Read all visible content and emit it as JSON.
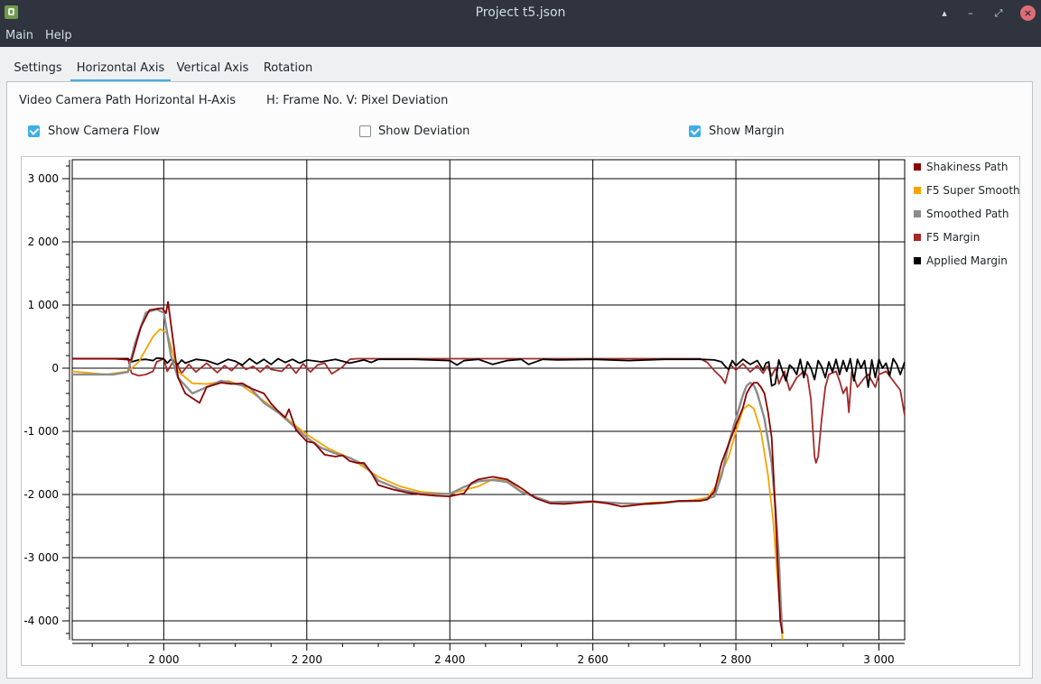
{
  "window": {
    "title": "Project t5.json",
    "controls": [
      "▴",
      "–",
      "⤢",
      "×"
    ]
  },
  "menu": {
    "items": [
      "Main",
      "Help"
    ]
  },
  "tabs": [
    {
      "label": "Settings",
      "active": false
    },
    {
      "label": "Horizontal Axis",
      "active": true
    },
    {
      "label": "Vertical Axis",
      "active": false
    },
    {
      "label": "Rotation",
      "active": false
    }
  ],
  "info": {
    "description": "Video Camera Path Horizontal H-Axis",
    "axes": "H: Frame No. V: Pixel Deviation"
  },
  "checkboxes": [
    {
      "label": "Show Camera Flow",
      "checked": true
    },
    {
      "label": "Show Deviation",
      "checked": false
    },
    {
      "label": "Show Margin",
      "checked": true
    }
  ],
  "colors": {
    "accent": "#3daee9",
    "titlebar": "#2f343f"
  },
  "chart_data": {
    "type": "line",
    "xlim": [
      1872,
      3036
    ],
    "ylim": [
      -4300,
      3300
    ],
    "xticks": [
      2000,
      2200,
      2400,
      2600,
      2800,
      3000
    ],
    "yticks": [
      3000,
      2000,
      1000,
      0,
      -1000,
      -2000,
      -3000,
      -4000
    ],
    "xtick_labels": [
      "2 000",
      "2 200",
      "2 400",
      "2 600",
      "2 800",
      "3 000"
    ],
    "ytick_labels": [
      "3 000",
      "2 000",
      "1 000",
      "0",
      "-1 000",
      "-2 000",
      "-3 000",
      "-4 000"
    ],
    "grid": true,
    "legend_position": "right",
    "series": [
      {
        "name": "Shakiness Path",
        "color": "#8b0000",
        "x": [
          1872,
          1930,
          1955,
          1968,
          1980,
          1990,
          1998,
          2003,
          2006,
          2010,
          2020,
          2030,
          2050,
          2060,
          2080,
          2095,
          2110,
          2120,
          2140,
          2150,
          2160,
          2170,
          2175,
          2185,
          2200,
          2210,
          2225,
          2240,
          2250,
          2260,
          2270,
          2280,
          2290,
          2300,
          2320,
          2340,
          2360,
          2380,
          2400,
          2420,
          2430,
          2440,
          2460,
          2480,
          2500,
          2520,
          2540,
          2560,
          2600,
          2620,
          2640,
          2650,
          2680,
          2700,
          2720,
          2750,
          2760,
          2770,
          2780,
          2790,
          2800,
          2810,
          2815,
          2820,
          2825,
          2830,
          2835,
          2840,
          2845,
          2850,
          2855,
          2860,
          2862,
          2865
        ],
        "y": [
          150,
          150,
          130,
          650,
          920,
          940,
          950,
          870,
          1050,
          700,
          -150,
          -400,
          -550,
          -300,
          -230,
          -250,
          -240,
          -310,
          -400,
          -560,
          -680,
          -780,
          -650,
          -980,
          -1160,
          -1180,
          -1370,
          -1400,
          -1380,
          -1470,
          -1500,
          -1500,
          -1650,
          -1850,
          -1920,
          -1970,
          -2000,
          -2020,
          -2030,
          -1980,
          -1820,
          -1760,
          -1720,
          -1760,
          -1900,
          -2060,
          -2140,
          -2150,
          -2110,
          -2140,
          -2190,
          -2180,
          -2140,
          -2130,
          -2100,
          -2100,
          -2080,
          -1950,
          -1500,
          -1200,
          -900,
          -620,
          -400,
          -300,
          -230,
          -230,
          -300,
          -400,
          -700,
          -1100,
          -2200,
          -3500,
          -4000,
          -4200
        ]
      },
      {
        "name": "F5 Super Smooth",
        "color": "#f5a400",
        "x": [
          1872,
          1920,
          1950,
          1965,
          1985,
          1995,
          2005,
          2020,
          2040,
          2060,
          2090,
          2110,
          2140,
          2170,
          2200,
          2230,
          2260,
          2300,
          2330,
          2360,
          2400,
          2440,
          2460,
          2480,
          2500,
          2540,
          2600,
          2650,
          2700,
          2740,
          2760,
          2770,
          2790,
          2800,
          2810,
          2818,
          2825,
          2835,
          2845,
          2852,
          2858,
          2865
        ],
        "y": [
          -50,
          -100,
          -50,
          100,
          500,
          620,
          550,
          -50,
          -240,
          -250,
          -200,
          -280,
          -520,
          -780,
          -1050,
          -1270,
          -1420,
          -1720,
          -1870,
          -1960,
          -1990,
          -1870,
          -1760,
          -1770,
          -1950,
          -2130,
          -2120,
          -2150,
          -2120,
          -2090,
          -2050,
          -1900,
          -1400,
          -1000,
          -650,
          -580,
          -640,
          -1000,
          -1700,
          -2400,
          -3300,
          -4300
        ]
      },
      {
        "name": "Smoothed Path",
        "color": "#8c8c8c",
        "x": [
          1872,
          1930,
          1950,
          1960,
          1975,
          1990,
          2000,
          2010,
          2020,
          2040,
          2060,
          2080,
          2100,
          2120,
          2140,
          2160,
          2180,
          2200,
          2220,
          2240,
          2260,
          2280,
          2300,
          2330,
          2360,
          2400,
          2420,
          2440,
          2460,
          2480,
          2500,
          2540,
          2600,
          2640,
          2680,
          2720,
          2750,
          2770,
          2780,
          2790,
          2800,
          2810,
          2815,
          2820,
          2825,
          2830,
          2840,
          2850,
          2856,
          2860,
          2863,
          2865
        ],
        "y": [
          -100,
          -100,
          -60,
          400,
          880,
          930,
          880,
          200,
          -150,
          -400,
          -300,
          -200,
          -250,
          -300,
          -550,
          -700,
          -900,
          -1100,
          -1260,
          -1350,
          -1420,
          -1530,
          -1780,
          -1920,
          -1990,
          -1990,
          -1880,
          -1790,
          -1770,
          -1800,
          -1960,
          -2120,
          -2110,
          -2140,
          -2150,
          -2110,
          -2100,
          -2030,
          -1700,
          -1200,
          -800,
          -420,
          -280,
          -230,
          -270,
          -400,
          -800,
          -1500,
          -2300,
          -3000,
          -3800,
          -4200
        ]
      },
      {
        "name": "F5 Margin",
        "color": "#a52a2a",
        "x": [
          1872,
          1950,
          1955,
          1965,
          1975,
          1985,
          1990,
          2000,
          2005,
          2015,
          2025,
          2035,
          2045,
          2060,
          2075,
          2085,
          2095,
          2105,
          2115,
          2125,
          2135,
          2145,
          2150,
          2165,
          2175,
          2185,
          2195,
          2205,
          2215,
          2225,
          2235,
          2250,
          2260,
          2270,
          2280,
          2290,
          2600,
          2750,
          2760,
          2770,
          2780,
          2785,
          2792,
          2800,
          2810,
          2820,
          2830,
          2838,
          2844,
          2850,
          2856,
          2860,
          2868,
          2875,
          2885,
          2895,
          2900,
          2905,
          2910,
          2912,
          2915,
          2920,
          2925,
          2930,
          2940,
          2945,
          2950,
          2955,
          2958,
          2962,
          2970,
          2980,
          2985,
          2995,
          3000,
          3010,
          3020,
          3030,
          3036
        ],
        "y": [
          150,
          150,
          -80,
          -120,
          -100,
          -50,
          100,
          150,
          -50,
          140,
          -80,
          60,
          -60,
          80,
          -70,
          40,
          -40,
          80,
          -20,
          30,
          -60,
          40,
          -20,
          -50,
          60,
          -80,
          70,
          -60,
          50,
          80,
          -90,
          20,
          140,
          150,
          150,
          150,
          150,
          150,
          90,
          -40,
          -150,
          -240,
          60,
          -30,
          70,
          -60,
          40,
          -80,
          30,
          -120,
          10,
          -250,
          -50,
          -350,
          -150,
          -50,
          -120,
          -500,
          -1400,
          -1500,
          -1400,
          -800,
          -300,
          -100,
          -50,
          -200,
          -400,
          -300,
          -700,
          -50,
          -300,
          -150,
          -100,
          -300,
          -100,
          -50,
          -200,
          -350,
          -750
        ]
      },
      {
        "name": "Applied Margin",
        "color": "#000000",
        "x": [
          1872,
          1950,
          1955,
          1965,
          1975,
          1985,
          1990,
          2000,
          2005,
          2010,
          2020,
          2025,
          2030,
          2045,
          2060,
          2075,
          2090,
          2100,
          2110,
          2120,
          2130,
          2140,
          2150,
          2160,
          2170,
          2180,
          2190,
          2200,
          2220,
          2240,
          2260,
          2280,
          2290,
          2300,
          2350,
          2400,
          2410,
          2420,
          2440,
          2460,
          2480,
          2500,
          2510,
          2530,
          2550,
          2600,
          2650,
          2700,
          2750,
          2770,
          2780,
          2785,
          2790,
          2795,
          2800,
          2810,
          2820,
          2830,
          2838,
          2842,
          2846,
          2850,
          2855,
          2860,
          2865,
          2870,
          2875,
          2880,
          2885,
          2890,
          2895,
          2900,
          2905,
          2910,
          2915,
          2920,
          2925,
          2930,
          2935,
          2940,
          2945,
          2950,
          2955,
          2960,
          2965,
          2970,
          2975,
          2980,
          2985,
          2990,
          2995,
          3000,
          3005,
          3010,
          3015,
          3020,
          3025,
          3030,
          3036
        ],
        "y": [
          150,
          150,
          100,
          130,
          140,
          120,
          160,
          150,
          80,
          140,
          60,
          130,
          80,
          140,
          120,
          60,
          140,
          110,
          50,
          150,
          70,
          140,
          60,
          150,
          90,
          140,
          80,
          130,
          100,
          140,
          80,
          130,
          90,
          140,
          140,
          120,
          50,
          120,
          140,
          60,
          120,
          140,
          60,
          140,
          130,
          140,
          120,
          140,
          140,
          130,
          100,
          30,
          -20,
          120,
          40,
          140,
          60,
          120,
          -30,
          80,
          100,
          -280,
          -250,
          130,
          -50,
          -200,
          50,
          0,
          -100,
          140,
          -150,
          100,
          0,
          -180,
          120,
          20,
          -150,
          100,
          -60,
          140,
          -100,
          120,
          -50,
          150,
          -200,
          140,
          0,
          120,
          -300,
          130,
          -150,
          140,
          0,
          80,
          -120,
          150,
          60,
          -100,
          100
        ]
      }
    ]
  }
}
